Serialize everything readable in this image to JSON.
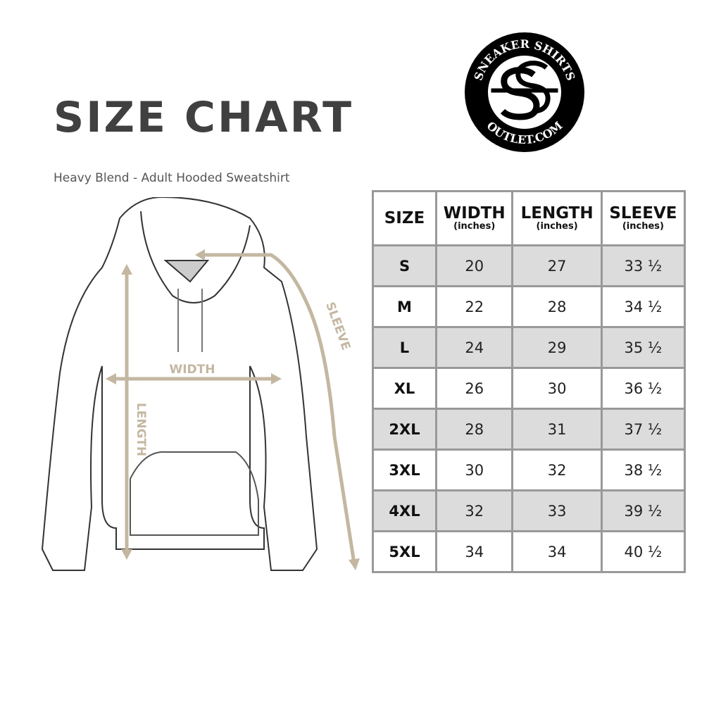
{
  "title": "SIZE CHART",
  "subtitle": "Heavy Blend - Adult Hooded Sweatshirt",
  "logo": {
    "text_top": "SNEAKER SHIRTS",
    "text_bottom": "OUTLET.COM"
  },
  "diagram_labels": {
    "width": "WIDTH",
    "length": "LENGTH",
    "sleeve": "SLEEVE"
  },
  "colors": {
    "measure_lines": "#c4b7a1",
    "row_shade": "#dcdcdc",
    "grid": "#999999"
  },
  "table": {
    "headers": [
      {
        "label": "SIZE",
        "unit": ""
      },
      {
        "label": "WIDTH",
        "unit": "(inches)"
      },
      {
        "label": "LENGTH",
        "unit": "(inches)"
      },
      {
        "label": "SLEEVE",
        "unit": "(inches)"
      }
    ],
    "rows": [
      [
        "S",
        "20",
        "27",
        "33 ½"
      ],
      [
        "M",
        "22",
        "28",
        "34 ½"
      ],
      [
        "L",
        "24",
        "29",
        "35 ½"
      ],
      [
        "XL",
        "26",
        "30",
        "36 ½"
      ],
      [
        "2XL",
        "28",
        "31",
        "37 ½"
      ],
      [
        "3XL",
        "30",
        "32",
        "38 ½"
      ],
      [
        "4XL",
        "32",
        "33",
        "39 ½"
      ],
      [
        "5XL",
        "34",
        "34",
        "40 ½"
      ]
    ]
  }
}
